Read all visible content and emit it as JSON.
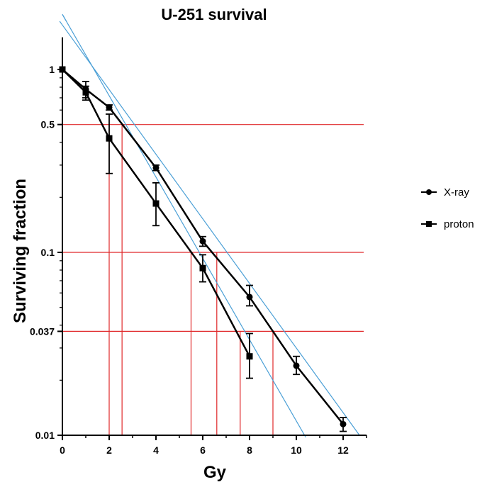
{
  "chart_data": {
    "type": "scatter",
    "title": "U-251 survival",
    "xlabel": "Gy",
    "ylabel": "Surviving fraction",
    "xlim": [
      0,
      13
    ],
    "xticks": [
      0,
      2,
      4,
      6,
      8,
      10,
      12
    ],
    "xtick_labels": [
      "0",
      "2",
      "4",
      "6",
      "8",
      "10",
      "12"
    ],
    "ylim": [
      0.01,
      1.5
    ],
    "yscale": "log",
    "yticks": [
      0.01,
      0.037,
      0.1,
      0.5,
      1
    ],
    "ytick_labels": [
      "0.01",
      "0.037",
      "0.1",
      "0.5",
      "1"
    ],
    "legend_position": "right",
    "series": [
      {
        "name": "X-ray",
        "marker": "circle",
        "color": "#000000",
        "x": [
          0,
          1,
          2,
          4,
          6,
          8,
          10,
          12
        ],
        "y": [
          1.0,
          0.78,
          0.62,
          0.29,
          0.115,
          0.057,
          0.024,
          0.0115
        ],
        "yerr_low": [
          1.0,
          0.7,
          0.6,
          0.28,
          0.108,
          0.051,
          0.0215,
          0.0105
        ],
        "yerr_high": [
          1.0,
          0.86,
          0.64,
          0.3,
          0.122,
          0.066,
          0.027,
          0.0125
        ]
      },
      {
        "name": "proton",
        "marker": "square",
        "color": "#000000",
        "x": [
          0,
          1,
          2,
          4,
          6,
          8
        ],
        "y": [
          1.0,
          0.75,
          0.42,
          0.185,
          0.082,
          0.027
        ],
        "yerr_low": [
          1.0,
          0.68,
          0.27,
          0.14,
          0.069,
          0.0205
        ],
        "yerr_high": [
          1.0,
          0.81,
          0.57,
          0.24,
          0.097,
          0.036
        ]
      }
    ],
    "fit_lines": [
      {
        "color": "#4a9fd6",
        "p1": [
          0,
          2.0
        ],
        "p2": [
          10.4,
          0.00975
        ]
      },
      {
        "color": "#4a9fd6",
        "p1": [
          0,
          1.75
        ],
        "p2": [
          12.7,
          0.01
        ]
      }
    ],
    "reference_lines": {
      "color": "#e0282a",
      "horizontal": [
        0.5,
        0.1,
        0.037
      ],
      "vertical": [
        {
          "x": 2.0,
          "y_top": 0.5
        },
        {
          "x": 2.55,
          "y_top": 0.5
        },
        {
          "x": 5.5,
          "y_top": 0.1
        },
        {
          "x": 6.6,
          "y_top": 0.1
        },
        {
          "x": 7.6,
          "y_top": 0.037
        },
        {
          "x": 9.0,
          "y_top": 0.037
        }
      ]
    }
  }
}
